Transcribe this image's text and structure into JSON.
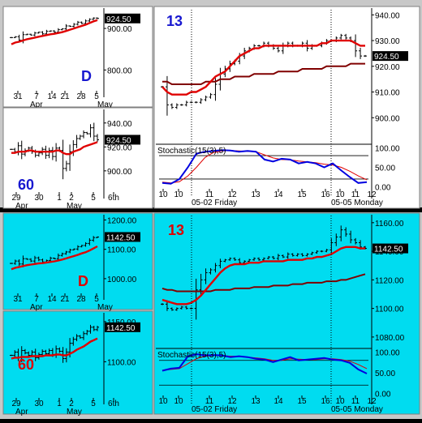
{
  "colors": {
    "top_bg": "#ffffff",
    "bottom_bg": "#00dcf0",
    "frame": "#c8c8c8",
    "separator": "#000000",
    "bar": "#000000",
    "ema_fast": "#e00000",
    "ema_slow": "#800000",
    "stoch_k": "#0000e0",
    "stoch_d": "#e00000",
    "price_tag_bg": "#000000",
    "price_tag_text": "#ffffff",
    "label_top": "#1818d0",
    "label_bottom": "#e00000"
  },
  "chart_data": [
    {
      "id": "top-daily",
      "type": "ohlc",
      "label": "D",
      "last": "924.50",
      "y_ticks": [
        "900.00",
        "800.00"
      ],
      "y_tick_values": [
        900,
        800
      ],
      "ylim": [
        750,
        945
      ],
      "x_ticks": [
        "31",
        "7",
        "14",
        "21",
        "28",
        "5"
      ],
      "month_labels": [
        "Apr",
        "May"
      ],
      "close": [
        878,
        880,
        872,
        885,
        886,
        884,
        889,
        891,
        887,
        893,
        894,
        891,
        897,
        899,
        906,
        905,
        910,
        915,
        912,
        918,
        922,
        925,
        924
      ],
      "ema_fast": [
        862,
        866,
        868,
        871,
        874,
        876,
        878,
        880,
        882,
        884,
        886,
        887,
        889,
        891,
        894,
        897,
        900,
        903,
        906,
        909,
        913,
        917,
        920
      ]
    },
    {
      "id": "top-60",
      "type": "ohlc",
      "label": "60",
      "last": "924.50",
      "y_ticks": [
        "940.00",
        "920.00",
        "900.00"
      ],
      "y_tick_values": [
        940,
        920,
        900
      ],
      "ylim": [
        885,
        950
      ],
      "x_ticks": [
        "29",
        "30",
        "1",
        "2",
        "5",
        "6th"
      ],
      "month_labels": [
        "Apr",
        "May"
      ],
      "close": [
        918,
        916,
        921,
        914,
        917,
        919,
        916,
        913,
        915,
        918,
        913,
        917,
        912,
        919,
        917,
        902,
        906,
        916,
        922,
        927,
        929,
        932,
        931,
        936,
        929,
        926
      ],
      "ema_fast": [
        915,
        915,
        916,
        916,
        916,
        917,
        917,
        916,
        916,
        916,
        916,
        916,
        916,
        917,
        917,
        915,
        914,
        914,
        916,
        917,
        918,
        920,
        921,
        922,
        923,
        924
      ]
    },
    {
      "id": "top-13",
      "type": "ohlc",
      "label": "13",
      "last": "924.50",
      "y_ticks": [
        "940.00",
        "930.00",
        "920.00",
        "910.00",
        "900.00"
      ],
      "y_tick_values": [
        940,
        930,
        920,
        910,
        900
      ],
      "ylim": [
        890,
        942
      ],
      "x_ticks": [
        "10",
        "10",
        "11",
        "12",
        "13",
        "14",
        "15",
        "16",
        "10",
        "11",
        "12"
      ],
      "date_labels": [
        "05-02 Friday",
        "05-05 Monday"
      ],
      "close": [
        912,
        905,
        904,
        905,
        905,
        906,
        906,
        906,
        907,
        908,
        909,
        913,
        917,
        919,
        921,
        922,
        924,
        926,
        927,
        928,
        928,
        929,
        928,
        927,
        926,
        928,
        929,
        928,
        928,
        929,
        927,
        928,
        928,
        929,
        930,
        930,
        931,
        932,
        931,
        930,
        926,
        924,
        924
      ],
      "ema_fast": [
        912,
        910,
        909,
        909,
        909,
        909,
        910,
        910,
        911,
        912,
        914,
        916,
        917,
        918,
        920,
        922,
        924,
        925,
        926,
        927,
        927,
        928,
        928,
        928,
        928,
        928,
        928,
        928,
        928,
        928,
        928,
        928,
        928,
        929,
        929,
        930,
        930,
        930,
        930,
        930,
        929,
        928,
        928
      ],
      "ema_slow": [
        914,
        914,
        913,
        913,
        913,
        913,
        913,
        913,
        913,
        914,
        914,
        914,
        915,
        915,
        915,
        916,
        916,
        916,
        916,
        917,
        917,
        917,
        917,
        917,
        918,
        918,
        918,
        918,
        918,
        919,
        919,
        919,
        919,
        919,
        920,
        920,
        920,
        920,
        920,
        921,
        921,
        921,
        921
      ],
      "stochastic": {
        "label": "Stochastic(15(3),5)",
        "y_ticks": [
          "100.00",
          "50.00",
          "0.00"
        ],
        "y_tick_values": [
          100,
          50,
          0
        ],
        "ylim": [
          -5,
          105
        ],
        "k": [
          10,
          8,
          20,
          50,
          85,
          90,
          92,
          94,
          93,
          90,
          92,
          90,
          70,
          65,
          72,
          70,
          60,
          64,
          60,
          50,
          60,
          42,
          25,
          10,
          12
        ],
        "d": [
          12,
          10,
          13,
          28,
          50,
          75,
          88,
          92,
          93,
          92,
          91,
          90,
          82,
          74,
          70,
          69,
          66,
          64,
          62,
          58,
          56,
          50,
          40,
          28,
          18
        ]
      }
    },
    {
      "id": "bottom-daily",
      "type": "ohlc",
      "label": "D",
      "last": "1142.50",
      "y_ticks": [
        "1200.00",
        "1100.00",
        "1000.00"
      ],
      "y_tick_values": [
        1200,
        1100,
        1000
      ],
      "ylim": [
        950,
        1215
      ],
      "x_ticks": [
        "31",
        "7",
        "14",
        "21",
        "28",
        "5"
      ],
      "month_labels": [
        "Apr",
        "May"
      ],
      "close": [
        1052,
        1060,
        1050,
        1068,
        1066,
        1060,
        1071,
        1064,
        1057,
        1062,
        1070,
        1068,
        1079,
        1085,
        1091,
        1098,
        1101,
        1109,
        1113,
        1120,
        1131,
        1140,
        1142
      ],
      "ema_fast": [
        1032,
        1037,
        1040,
        1043,
        1046,
        1048,
        1050,
        1052,
        1053,
        1055,
        1057,
        1059,
        1062,
        1065,
        1069,
        1073,
        1077,
        1081,
        1086,
        1090,
        1096,
        1103,
        1110
      ]
    },
    {
      "id": "bottom-60",
      "type": "ohlc",
      "label": "60",
      "last": "1142.50",
      "y_ticks": [
        "1150.00",
        "1100.00"
      ],
      "y_tick_values": [
        1150,
        1100
      ],
      "ylim": [
        1060,
        1160
      ],
      "x_ticks": [
        "29",
        "30",
        "1",
        "2",
        "5",
        "6th"
      ],
      "month_labels": [
        "Apr",
        "May"
      ],
      "close": [
        1108,
        1112,
        1105,
        1114,
        1111,
        1108,
        1112,
        1105,
        1109,
        1113,
        1110,
        1114,
        1109,
        1116,
        1113,
        1104,
        1112,
        1123,
        1128,
        1132,
        1130,
        1135,
        1138,
        1143,
        1140,
        1143
      ],
      "ema_fast": [
        1104,
        1105,
        1105,
        1106,
        1106,
        1106,
        1107,
        1107,
        1107,
        1107,
        1108,
        1108,
        1108,
        1109,
        1109,
        1108,
        1108,
        1110,
        1112,
        1115,
        1117,
        1119,
        1122,
        1125,
        1127,
        1129
      ]
    },
    {
      "id": "bottom-13",
      "type": "ohlc",
      "label": "13",
      "last": "1142.50",
      "y_ticks": [
        "1160.00",
        "1140.00",
        "1120.00",
        "1100.00",
        "1080.00"
      ],
      "y_tick_values": [
        1160,
        1140,
        1120,
        1100,
        1080
      ],
      "ylim": [
        1072,
        1165
      ],
      "x_ticks": [
        "10",
        "10",
        "11",
        "12",
        "13",
        "14",
        "15",
        "16",
        "10",
        "11",
        "12"
      ],
      "date_labels": [
        "05-02 Friday",
        "05-05 Monday"
      ],
      "close": [
        1103,
        1100,
        1099,
        1100,
        1101,
        1100,
        1100,
        1113,
        1120,
        1125,
        1127,
        1130,
        1133,
        1134,
        1135,
        1134,
        1132,
        1133,
        1134,
        1135,
        1134,
        1135,
        1136,
        1135,
        1137,
        1136,
        1138,
        1137,
        1138,
        1137,
        1138,
        1139,
        1140,
        1140,
        1141,
        1146,
        1150,
        1155,
        1152,
        1148,
        1146,
        1143,
        1142
      ],
      "ema_fast": [
        1106,
        1105,
        1104,
        1103,
        1103,
        1103,
        1104,
        1106,
        1109,
        1113,
        1117,
        1121,
        1125,
        1128,
        1130,
        1131,
        1131,
        1131,
        1132,
        1132,
        1132,
        1133,
        1133,
        1133,
        1133,
        1133,
        1134,
        1134,
        1134,
        1134,
        1135,
        1135,
        1136,
        1136,
        1137,
        1138,
        1140,
        1142,
        1143,
        1143,
        1143,
        1142,
        1142
      ],
      "ema_slow": [
        1114,
        1113,
        1113,
        1112,
        1112,
        1112,
        1112,
        1112,
        1112,
        1112,
        1112,
        1113,
        1113,
        1113,
        1113,
        1114,
        1114,
        1114,
        1114,
        1115,
        1115,
        1115,
        1115,
        1116,
        1116,
        1116,
        1116,
        1117,
        1117,
        1117,
        1118,
        1118,
        1118,
        1118,
        1119,
        1119,
        1119,
        1120,
        1120,
        1121,
        1122,
        1123,
        1124
      ],
      "stochastic": {
        "label": "Stochastic(15(3),5)",
        "y_ticks": [
          "100.00",
          "50.00",
          "0.00"
        ],
        "y_tick_values": [
          100,
          50,
          0
        ],
        "ylim": [
          -5,
          105
        ],
        "k": [
          55,
          60,
          62,
          90,
          95,
          92,
          93,
          92,
          88,
          90,
          88,
          84,
          82,
          76,
          82,
          88,
          80,
          82,
          84,
          86,
          82,
          80,
          74,
          58,
          48
        ],
        "d": [
          56,
          58,
          60,
          72,
          84,
          90,
          92,
          92,
          90,
          90,
          88,
          86,
          84,
          80,
          80,
          84,
          83,
          82,
          82,
          84,
          84,
          82,
          78,
          70,
          60
        ]
      }
    }
  ]
}
